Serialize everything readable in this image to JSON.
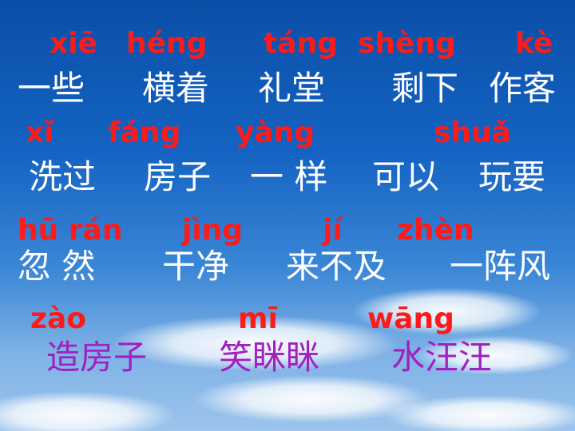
{
  "rows": [
    {
      "pinyin": [
        "xiē",
        "héng",
        "táng",
        "shèng",
        "kè"
      ],
      "words": [
        "一些",
        "横着",
        "礼堂",
        "剩下",
        "作客"
      ]
    },
    {
      "pinyin": [
        "xǐ",
        "fáng",
        "yàng",
        "shuǎ"
      ],
      "words": [
        "洗过",
        "房子",
        "一 样",
        "可以",
        "玩要"
      ]
    },
    {
      "pinyin": [
        "hū rán",
        "jìng",
        "jí",
        "zhèn"
      ],
      "words": [
        "忽 然",
        "干净",
        "来不及",
        "一阵风"
      ]
    },
    {
      "pinyin": [
        "zào",
        "mī",
        "wāng"
      ],
      "words": [
        "造房子",
        "笑眯眯",
        "水汪汪"
      ]
    }
  ],
  "colors": {
    "pinyin": "#ff1a1a",
    "words": "#ffffff",
    "words_last_row": "#a020c0",
    "sky_top": "#0a4fa8",
    "sky_bottom": "#9cc4ec"
  }
}
